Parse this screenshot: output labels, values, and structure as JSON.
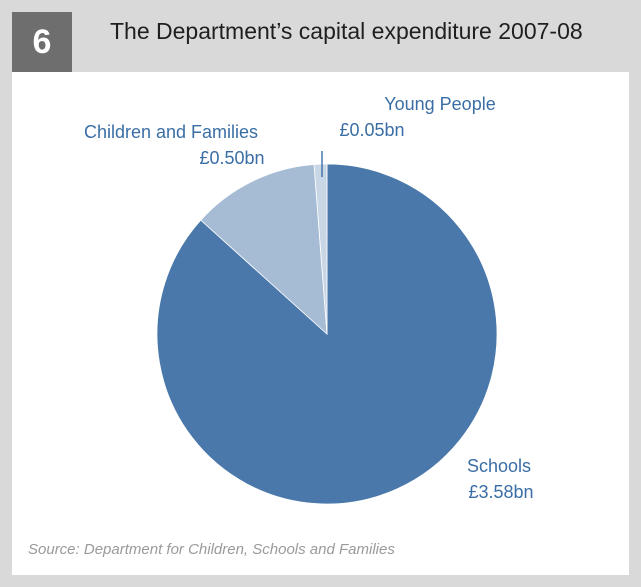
{
  "figure": {
    "number": "6",
    "title": "The Department’s capital expenditure 2007-08",
    "source": "Source: Department for Children, Schools and Families"
  },
  "chart_data": {
    "type": "pie",
    "title": "The Department’s capital expenditure 2007-08",
    "unit": "£bn",
    "slices": [
      {
        "name": "Schools",
        "value": 3.58,
        "value_label": "£3.58bn",
        "color": "#4a78aa"
      },
      {
        "name": "Children and Families",
        "value": 0.5,
        "value_label": "£0.50bn",
        "color": "#a6bcd5"
      },
      {
        "name": "Young People",
        "value": 0.05,
        "value_label": "£0.05bn",
        "color": "#c9d6e5"
      }
    ],
    "legend": "none",
    "label_color": "#3a6ea5"
  }
}
